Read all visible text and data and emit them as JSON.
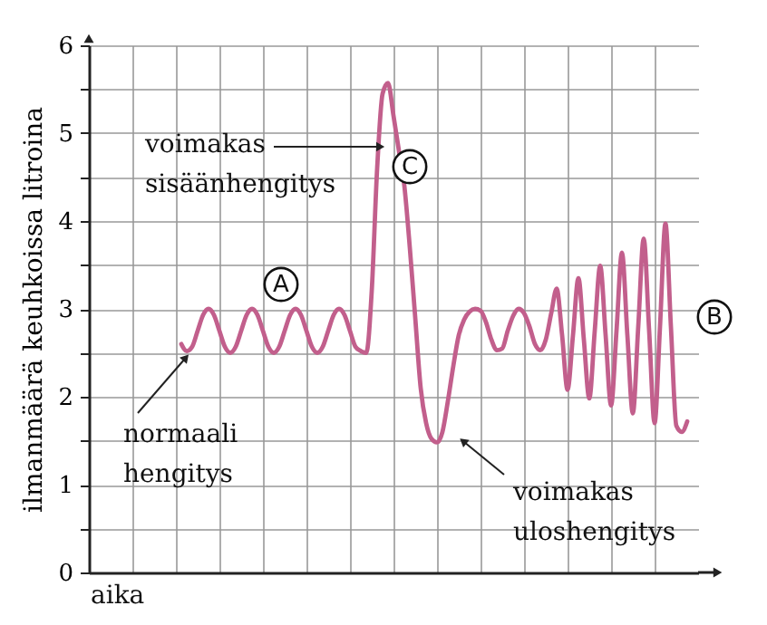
{
  "chart_data": {
    "type": "line",
    "xlabel": "aika",
    "ylabel": "ilmanmäärä keuhkoissa litroina",
    "categories": [
      null,
      null,
      null,
      null,
      null,
      null,
      null,
      null,
      null,
      null,
      null,
      null,
      null,
      null,
      null,
      null,
      null,
      null,
      null,
      null,
      null,
      null,
      null,
      null,
      null,
      null,
      null,
      null,
      null,
      null,
      null,
      null,
      null,
      null,
      null,
      null,
      null,
      null,
      null,
      null,
      null,
      null,
      null,
      null,
      null,
      null,
      null,
      null,
      null,
      null,
      null,
      null,
      null,
      null,
      null,
      null,
      null,
      null,
      null,
      null,
      null,
      null,
      null,
      null,
      null,
      null,
      null,
      null,
      null,
      null,
      null,
      null,
      null,
      null,
      null,
      null,
      null,
      null,
      null,
      null,
      null,
      null,
      null,
      null,
      null,
      null,
      null,
      null,
      null,
      null,
      null,
      null,
      null,
      null,
      null,
      null,
      null,
      null,
      null,
      null,
      null,
      null,
      null,
      null,
      null,
      null,
      null,
      null,
      null,
      null,
      null,
      null
    ],
    "values": [
      null,
      null,
      null,
      null,
      null,
      null,
      null,
      null,
      null,
      null,
      null,
      null,
      null,
      null,
      null,
      null,
      null,
      2.6,
      2.52,
      2.57,
      2.75,
      2.93,
      3.0,
      2.93,
      2.75,
      2.57,
      2.5,
      2.57,
      2.75,
      2.93,
      3.0,
      2.93,
      2.75,
      2.57,
      2.5,
      2.57,
      2.75,
      2.93,
      3.0,
      2.93,
      2.75,
      2.57,
      2.5,
      2.57,
      2.75,
      2.93,
      3.0,
      2.93,
      2.75,
      2.57,
      2.52,
      2.5,
      3.2,
      4.6,
      5.45,
      5.57,
      5.2,
      4.8,
      4.4,
      3.7,
      2.9,
      2.1,
      1.7,
      1.52,
      1.48,
      1.6,
      1.95,
      2.35,
      2.7,
      2.88,
      2.97,
      3.0,
      2.98,
      2.85,
      2.65,
      2.53,
      2.55,
      2.75,
      2.92,
      3.0,
      2.95,
      2.8,
      2.6,
      2.53,
      2.65,
      2.95,
      3.23,
      2.7,
      2.08,
      2.7,
      3.35,
      2.65,
      1.98,
      2.75,
      3.49,
      2.7,
      1.9,
      2.75,
      3.64,
      2.7,
      1.81,
      2.8,
      3.8,
      2.75,
      1.7,
      2.8,
      3.97,
      2.8,
      1.67,
      1.6,
      1.72,
      null
    ],
    "color": "#c25f8c",
    "ylim": [
      0,
      6
    ],
    "yticks": [
      0,
      {
        "value": 0.5,
        "label": null
      },
      1,
      {
        "value": 1.5,
        "label": null
      },
      2,
      {
        "value": 2.5,
        "label": null
      },
      3,
      {
        "value": 3.5,
        "label": null
      },
      4,
      {
        "value": 4.5,
        "label": null
      },
      5,
      {
        "value": 5.5,
        "label": null
      },
      6
    ],
    "grid": true,
    "tick_labels": "y",
    "annotations": [
      "voimakas\nsisäänhengitys",
      "A",
      "C",
      "normaali\nhengitys",
      "voimakas\nuloshengitys",
      "B"
    ]
  }
}
